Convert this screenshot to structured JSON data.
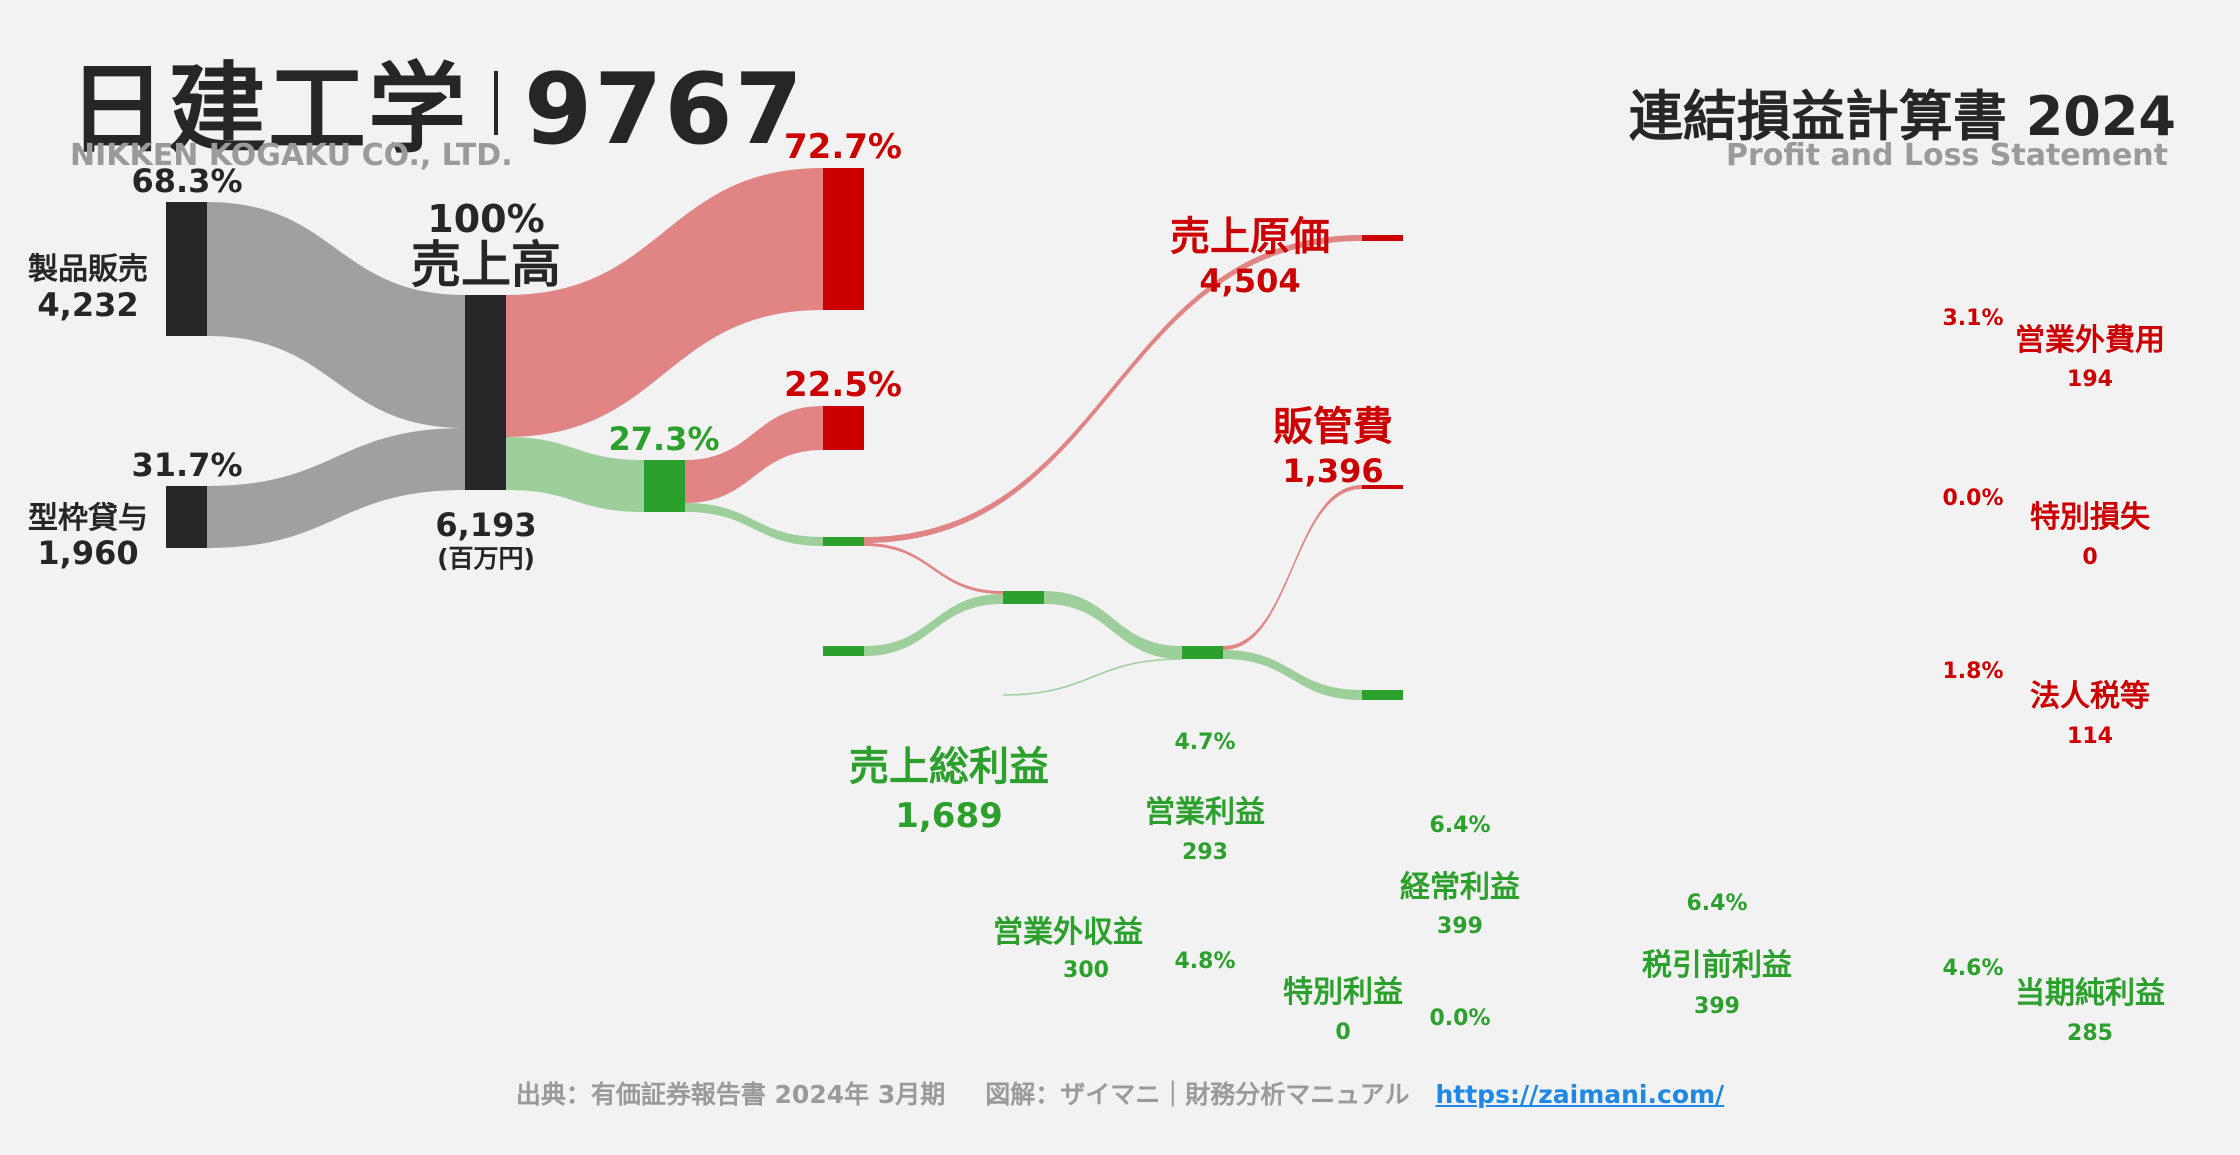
{
  "header": {
    "company_jp": "日建工学",
    "ticker": "9767",
    "company_en": "NIKKEN KOGAKU CO., LTD.",
    "statement_title": "連結損益計算書 2024",
    "statement_sub": "Profit and Loss Statement"
  },
  "footer": {
    "source": "出典：有価証券報告書 2024年 3月期",
    "credit": "図解：ザイマニ｜財務分析マニュアル",
    "url": "https://zaimani.com/"
  },
  "colors": {
    "dark": "#262626",
    "gray_flow": "#a0a0a0",
    "cost_red": "#cc0000",
    "cost_flow": "#e08484",
    "profit_green": "#2ca02c",
    "profit_flow": "#9dcf9b"
  },
  "chart_data": {
    "type": "sankey",
    "unit": "(百万円)",
    "nodes": [
      {
        "id": "product_sales",
        "label": "製品販売",
        "value": "4,232",
        "pct": "68.3%"
      },
      {
        "id": "formwork_rental",
        "label": "型枠貸与",
        "value": "1,960",
        "pct": "31.7%"
      },
      {
        "id": "revenue",
        "label": "売上高",
        "value": "6,193",
        "pct": "100%"
      },
      {
        "id": "cogs",
        "label": "売上原価",
        "value": "4,504",
        "pct": "72.7%"
      },
      {
        "id": "gross_profit",
        "label": "売上総利益",
        "value": "1,689",
        "pct": "27.3%"
      },
      {
        "id": "sga",
        "label": "販管費",
        "value": "1,396",
        "pct": "22.5%"
      },
      {
        "id": "operating_income",
        "label": "営業利益",
        "value": "293",
        "pct": "4.7%"
      },
      {
        "id": "non_op_income",
        "label": "営業外収益",
        "value": "300",
        "pct": "4.8%"
      },
      {
        "id": "non_op_expense",
        "label": "営業外費用",
        "value": "194",
        "pct": "3.1%"
      },
      {
        "id": "ordinary_income",
        "label": "経常利益",
        "value": "399",
        "pct": "6.4%"
      },
      {
        "id": "extraordinary_income",
        "label": "特別利益",
        "value": "0",
        "pct": "0.0%"
      },
      {
        "id": "extraordinary_loss",
        "label": "特別損失",
        "value": "0",
        "pct": "0.0%"
      },
      {
        "id": "pretax_income",
        "label": "税引前利益",
        "value": "399",
        "pct": "6.4%"
      },
      {
        "id": "income_tax",
        "label": "法人税等",
        "value": "114",
        "pct": "1.8%"
      },
      {
        "id": "net_income",
        "label": "当期純利益",
        "value": "285",
        "pct": "4.6%"
      }
    ],
    "links": [
      {
        "source": "product_sales",
        "target": "revenue",
        "value": 4232
      },
      {
        "source": "formwork_rental",
        "target": "revenue",
        "value": 1960
      },
      {
        "source": "revenue",
        "target": "cogs",
        "value": 4504
      },
      {
        "source": "revenue",
        "target": "gross_profit",
        "value": 1689
      },
      {
        "source": "gross_profit",
        "target": "sga",
        "value": 1396
      },
      {
        "source": "gross_profit",
        "target": "operating_income",
        "value": 293
      },
      {
        "source": "operating_income",
        "target": "non_op_expense",
        "value": 194
      },
      {
        "source": "operating_income",
        "target": "ordinary_income",
        "value": 99
      },
      {
        "source": "non_op_income",
        "target": "ordinary_income",
        "value": 300
      },
      {
        "source": "ordinary_income",
        "target": "pretax_income",
        "value": 399
      },
      {
        "source": "extraordinary_income",
        "target": "pretax_income",
        "value": 0
      },
      {
        "source": "pretax_income",
        "target": "income_tax",
        "value": 114
      },
      {
        "source": "pretax_income",
        "target": "net_income",
        "value": 285
      }
    ]
  }
}
